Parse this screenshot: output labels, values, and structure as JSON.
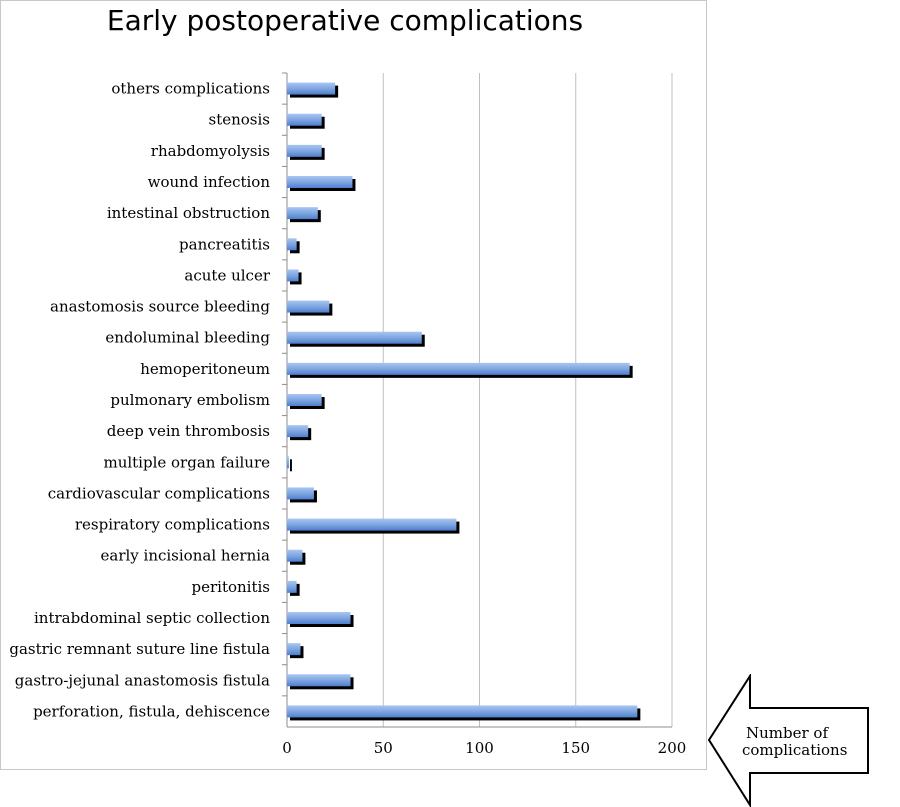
{
  "chart_data": {
    "type": "bar",
    "orientation": "horizontal",
    "title": "Early postoperative complications",
    "categories": [
      "others complications",
      "stenosis",
      "rhabdomyolysis",
      "wound infection",
      "intestinal obstruction",
      "pancreatitis",
      "acute ulcer",
      "anastomosis source bleeding",
      "endoluminal bleeding",
      "hemoperitoneum",
      "pulmonary embolism",
      "deep vein thrombosis",
      "multiple organ failure",
      "cardiovascular complications",
      "respiratory complications",
      "early incisional hernia",
      "peritonitis",
      "intrabdominal septic collection",
      "gastric remnant suture line fistula",
      "gastro-jejunal anastomosis fistula",
      "perforation, fistula, dehiscence"
    ],
    "values": [
      25,
      18,
      18,
      34,
      16,
      5,
      6,
      22,
      70,
      178,
      18,
      11,
      1,
      14,
      88,
      8,
      5,
      33,
      7,
      33,
      182
    ],
    "xlim": [
      0,
      200
    ],
    "xticks": [
      0,
      50,
      100,
      150,
      200
    ],
    "grid": true,
    "bar_color": "#7ea6e0",
    "shadow_color": "#000000",
    "grid_color": "#bfbfbf"
  },
  "annotation": {
    "line1": "Number of",
    "line2": "complications"
  }
}
